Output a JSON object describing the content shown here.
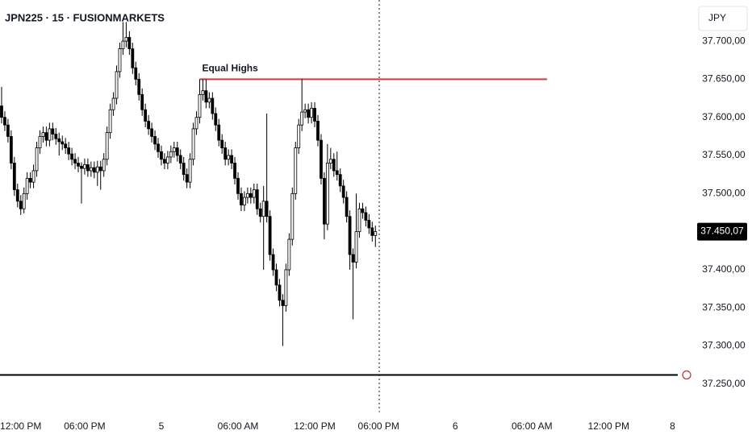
{
  "chart_data": {
    "type": "candlestick",
    "title": "JPN225 · 15 · FUSIONMARKETS",
    "currency": "JPY",
    "open": [
      37615,
      37600,
      37590,
      37575,
      37540,
      37505,
      37490,
      37480,
      37500,
      37520,
      37515,
      37530,
      37560,
      37575,
      37580,
      37570,
      37585,
      37578,
      37572,
      37568,
      37565,
      37560,
      37552,
      37545,
      37540,
      37536,
      37533,
      37538,
      37530,
      37534,
      37528,
      37535,
      37530,
      37545,
      37580,
      37610,
      37625,
      37660,
      37690,
      37700,
      37705,
      37690,
      37665,
      37650,
      37630,
      37610,
      37595,
      37585,
      37575,
      37565,
      37555,
      37545,
      37540,
      37548,
      37555,
      37560,
      37550,
      37540,
      37525,
      37515,
      37545,
      37585,
      37600,
      37630,
      37635,
      37620,
      37625,
      37605,
      37590,
      37570,
      37560,
      37545,
      37550,
      37540,
      37520,
      37500,
      37485,
      37495,
      37500,
      37495,
      37505,
      37480,
      37470,
      37490,
      37470,
      37420,
      37400,
      37380,
      37360,
      37353,
      37400,
      37440,
      37500,
      37560,
      37590,
      37607,
      37610,
      37600,
      37612,
      37595,
      37570,
      37520,
      37460,
      37540,
      37545,
      37530,
      37525,
      37510,
      37495,
      37470,
      37420,
      37410,
      37450,
      37480,
      37475,
      37465,
      37455,
      37445
    ],
    "high": [
      37640,
      37608,
      37598,
      37583,
      37548,
      37513,
      37498,
      37508,
      37528,
      37528,
      37538,
      37568,
      37583,
      37588,
      37588,
      37593,
      37593,
      37586,
      37580,
      37576,
      37573,
      37568,
      37560,
      37553,
      37548,
      37541,
      37546,
      37546,
      37542,
      37542,
      37543,
      37543,
      37553,
      37588,
      37618,
      37633,
      37668,
      37698,
      37725,
      37725,
      37713,
      37698,
      37673,
      37658,
      37638,
      37618,
      37603,
      37593,
      37583,
      37573,
      37563,
      37553,
      37556,
      37563,
      37568,
      37568,
      37558,
      37548,
      37533,
      37553,
      37593,
      37608,
      37650,
      37650,
      37650,
      37633,
      37633,
      37613,
      37598,
      37578,
      37568,
      37558,
      37558,
      37548,
      37528,
      37508,
      37503,
      37508,
      37508,
      37513,
      37513,
      37488,
      37510,
      37605,
      37478,
      37428,
      37408,
      37388,
      37368,
      37408,
      37448,
      37508,
      37568,
      37598,
      37650,
      37618,
      37618,
      37620,
      37620,
      37603,
      37578,
      37528,
      37565,
      37560,
      37553,
      37555,
      37533,
      37518,
      37503,
      37478,
      37428,
      37500,
      37488,
      37488,
      37483,
      37473,
      37463,
      37458
    ],
    "low": [
      37592,
      37582,
      37567,
      37532,
      37497,
      37482,
      37472,
      37474,
      37492,
      37507,
      37507,
      37522,
      37552,
      37567,
      37562,
      37562,
      37570,
      37564,
      37550,
      37557,
      37552,
      37544,
      37537,
      37532,
      37528,
      37487,
      37525,
      37522,
      37522,
      37520,
      37510,
      37505,
      37522,
      37537,
      37572,
      37602,
      37617,
      37652,
      37682,
      37692,
      37682,
      37657,
      37642,
      37622,
      37602,
      37587,
      37577,
      37567,
      37557,
      37547,
      37537,
      37532,
      37532,
      37540,
      37547,
      37542,
      37532,
      37517,
      37507,
      37507,
      37537,
      37577,
      37592,
      37622,
      37612,
      37612,
      37597,
      37582,
      37562,
      37552,
      37537,
      37537,
      37532,
      37512,
      37492,
      37477,
      37477,
      37487,
      37487,
      37487,
      37472,
      37462,
      37400,
      37462,
      37412,
      37392,
      37372,
      37352,
      37300,
      37345,
      37392,
      37432,
      37492,
      37552,
      37582,
      37599,
      37592,
      37592,
      37587,
      37562,
      37512,
      37440,
      37452,
      37532,
      37522,
      37517,
      37502,
      37487,
      37462,
      37400,
      37335,
      37402,
      37442,
      37467,
      37457,
      37447,
      37437,
      37430
    ],
    "close": [
      37600,
      37590,
      37575,
      37540,
      37505,
      37490,
      37480,
      37500,
      37520,
      37515,
      37530,
      37560,
      37575,
      37580,
      37570,
      37585,
      37578,
      37572,
      37568,
      37565,
      37560,
      37552,
      37545,
      37540,
      37536,
      37533,
      37538,
      37530,
      37534,
      37528,
      37535,
      37530,
      37545,
      37580,
      37610,
      37625,
      37660,
      37690,
      37700,
      37705,
      37690,
      37665,
      37650,
      37630,
      37610,
      37595,
      37585,
      37575,
      37565,
      37555,
      37545,
      37540,
      37548,
      37555,
      37560,
      37550,
      37540,
      37525,
      37515,
      37545,
      37585,
      37600,
      37630,
      37635,
      37620,
      37625,
      37605,
      37590,
      37570,
      37560,
      37545,
      37550,
      37540,
      37520,
      37500,
      37485,
      37495,
      37500,
      37495,
      37505,
      37480,
      37470,
      37490,
      37470,
      37420,
      37400,
      37380,
      37360,
      37353,
      37400,
      37440,
      37500,
      37560,
      37590,
      37607,
      37610,
      37600,
      37612,
      37595,
      37570,
      37520,
      37460,
      37540,
      37545,
      37530,
      37525,
      37510,
      37495,
      37470,
      37420,
      37410,
      37450,
      37480,
      37475,
      37465,
      37455,
      37445,
      37450.07
    ],
    "last_label": "37.450,07",
    "up_color": "#ffffff",
    "down_color": "#000000",
    "xlim": [
      -0.5,
      212.9
    ],
    "ylim": [
      37215,
      37754
    ],
    "xticks": [
      {
        "value": 6,
        "label": "12:00 PM"
      },
      {
        "value": 26,
        "label": "06:00 PM"
      },
      {
        "value": 50,
        "label": "5"
      },
      {
        "value": 74,
        "label": "06:00 AM"
      },
      {
        "value": 98,
        "label": "12:00 PM"
      },
      {
        "value": 118,
        "label": "06:00 PM"
      },
      {
        "value": 142,
        "label": "6"
      },
      {
        "value": 166,
        "label": "06:00 AM"
      },
      {
        "value": 190,
        "label": "12:00 PM"
      },
      {
        "value": 210,
        "label": "8"
      }
    ],
    "yticks": [
      {
        "value": 37700,
        "label": "37.700,00"
      },
      {
        "value": 37650,
        "label": "37.650,00"
      },
      {
        "value": 37600,
        "label": "37.600,00"
      },
      {
        "value": 37550,
        "label": "37.550,00"
      },
      {
        "value": 37500,
        "label": "37.500,00"
      },
      {
        "value": 37400,
        "label": "37.400,00"
      },
      {
        "value": 37350,
        "label": "37.350,00"
      },
      {
        "value": 37300,
        "label": "37.300,00"
      },
      {
        "value": 37250,
        "label": "37.250,00"
      }
    ],
    "annotation": {
      "text": "Equal Highs",
      "value": 37650,
      "x": [
        62,
        170.7
      ],
      "color": "#e8303a"
    },
    "hline": {
      "value": 37262,
      "color": "#000000"
    }
  }
}
